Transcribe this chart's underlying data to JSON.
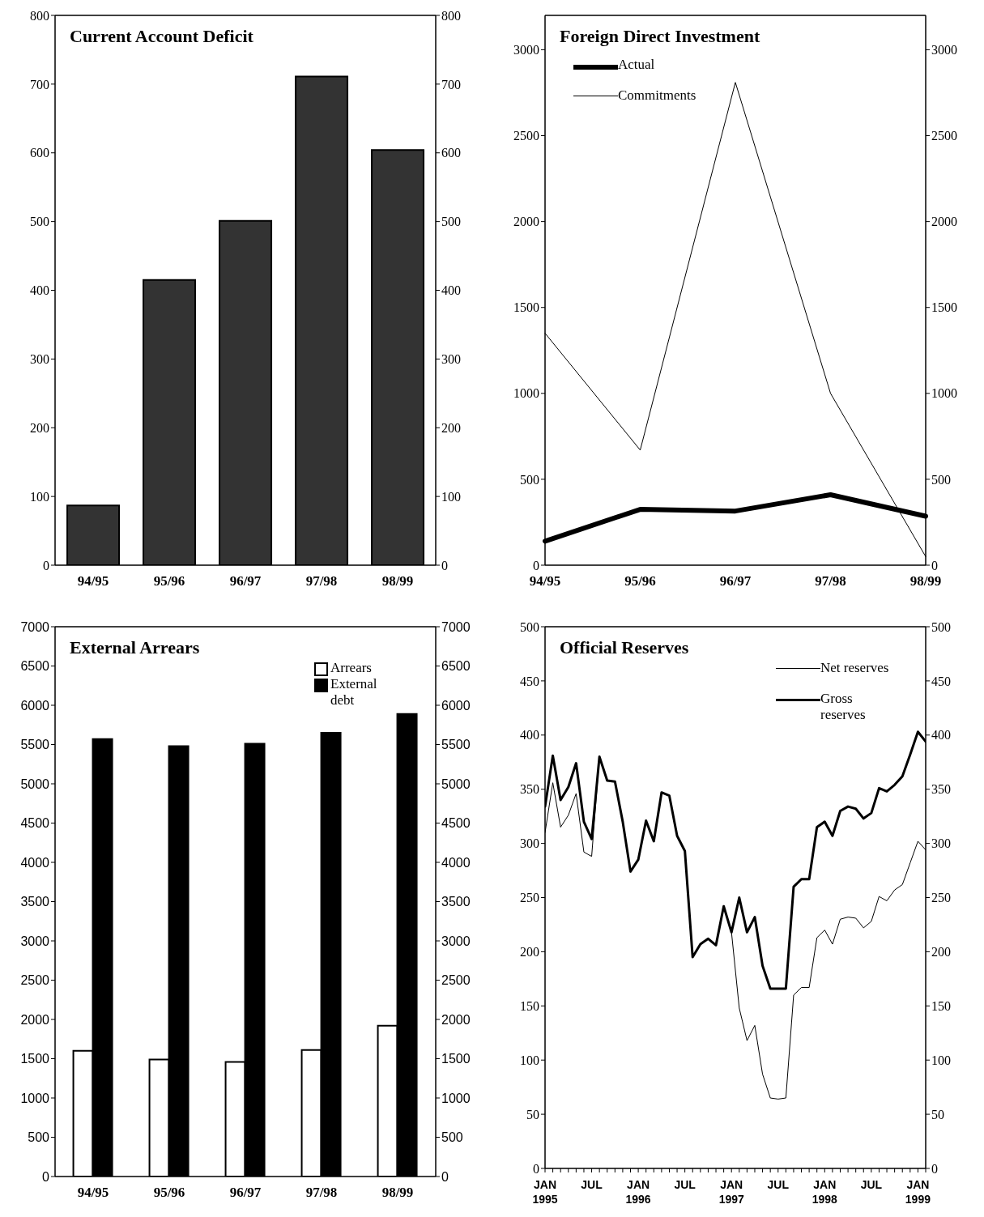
{
  "chart_data": [
    {
      "type": "bar",
      "title": "Current Account Deficit",
      "categories": [
        "94/95",
        "95/96",
        "96/97",
        "97/98",
        "98/99"
      ],
      "values": [
        87,
        415,
        501,
        711,
        604
      ],
      "color": "#333333",
      "ylim": [
        0,
        800
      ],
      "yticks": [
        0,
        100,
        200,
        300,
        400,
        500,
        600,
        700,
        800
      ],
      "y2lim": [
        0,
        800
      ],
      "y2ticks": [
        0,
        100,
        200,
        300,
        400,
        500,
        600,
        700,
        800
      ]
    },
    {
      "type": "line",
      "title": "Foreign Direct Investment",
      "categories": [
        "94/95",
        "95/96",
        "96/97",
        "97/98",
        "98/99"
      ],
      "series": [
        {
          "name": "Actual",
          "color": "#000000",
          "values": [
            140,
            325,
            315,
            410,
            285
          ]
        },
        {
          "name": "Commitments",
          "color": "#000000",
          "values": [
            1350,
            670,
            2810,
            1000,
            50
          ]
        }
      ],
      "ylim": [
        0,
        3200
      ],
      "yticks": [
        0,
        500,
        1000,
        1500,
        2000,
        2500,
        3000
      ],
      "y2lim": [
        0,
        3200
      ],
      "y2ticks": [
        0,
        500,
        1000,
        1500,
        2000,
        2500,
        3000
      ],
      "legend": "top left"
    },
    {
      "type": "bar",
      "title": "External Arrears",
      "categories": [
        "94/95",
        "95/96",
        "96/97",
        "97/98",
        "98/99"
      ],
      "series": [
        {
          "name": "Arrears",
          "color": "#ffffff",
          "values": [
            1600,
            1490,
            1460,
            1610,
            1920
          ]
        },
        {
          "name": "External debt",
          "color": "#000000",
          "values": [
            5570,
            5480,
            5510,
            5650,
            5890
          ]
        }
      ],
      "ylim": [
        0,
        7000
      ],
      "yticks": [
        0,
        500,
        1000,
        1500,
        2000,
        2500,
        3000,
        3500,
        4000,
        4500,
        5000,
        5500,
        6000,
        6500,
        7000
      ],
      "y2lim": [
        0,
        7000
      ],
      "y2ticks": [
        0,
        500,
        1000,
        1500,
        2000,
        2500,
        3000,
        3500,
        4000,
        4500,
        5000,
        5500,
        6000,
        6500,
        7000
      ],
      "legend": "top right"
    },
    {
      "type": "line",
      "title": "Official Reserves",
      "x": [
        "1995-01",
        "1995-02",
        "1995-03",
        "1995-04",
        "1995-05",
        "1995-06",
        "1995-07",
        "1995-08",
        "1995-09",
        "1995-10",
        "1995-11",
        "1995-12",
        "1996-01",
        "1996-02",
        "1996-03",
        "1996-04",
        "1996-05",
        "1996-06",
        "1996-07",
        "1996-08",
        "1996-09",
        "1996-10",
        "1996-11",
        "1996-12",
        "1997-01",
        "1997-02",
        "1997-03",
        "1997-04",
        "1997-05",
        "1997-06",
        "1997-07",
        "1997-08",
        "1997-09",
        "1997-10",
        "1997-11",
        "1997-12",
        "1998-01",
        "1998-02",
        "1998-03",
        "1998-04",
        "1998-05",
        "1998-06",
        "1998-07",
        "1998-08",
        "1998-09",
        "1998-10",
        "1998-11",
        "1998-12",
        "1999-01",
        "1999-02"
      ],
      "series": [
        {
          "name": "Net reserves",
          "color": "#000000",
          "values": [
            310,
            356,
            315,
            326,
            346,
            292,
            288,
            380,
            358,
            357,
            320,
            274,
            285,
            321,
            302,
            347,
            344,
            307,
            293,
            195,
            207,
            212,
            206,
            242,
            218,
            148,
            118,
            132,
            87,
            65,
            64,
            65,
            160,
            167,
            167,
            213,
            220,
            207,
            230,
            232,
            231,
            222,
            228,
            251,
            247,
            257,
            262,
            282,
            302,
            294
          ]
        },
        {
          "name": "Gross reserves",
          "color": "#000000",
          "values": [
            334,
            381,
            340,
            352,
            374,
            320,
            304,
            380,
            358,
            357,
            320,
            274,
            285,
            321,
            302,
            347,
            344,
            307,
            293,
            195,
            207,
            212,
            206,
            242,
            218,
            250,
            218,
            232,
            187,
            166,
            166,
            166,
            260,
            267,
            267,
            315,
            320,
            307,
            330,
            334,
            332,
            323,
            328,
            351,
            348,
            354,
            362,
            382,
            403,
            394
          ]
        }
      ],
      "xlim": [
        "1995-01",
        "1999-02"
      ],
      "xticks": [
        {
          "value": "1995-01",
          "label": "JAN 1995"
        },
        {
          "value": "1995-02",
          "label": null
        },
        {
          "value": "1995-03",
          "label": null
        },
        {
          "value": "1995-04",
          "label": null
        },
        {
          "value": "1995-05",
          "label": null
        },
        {
          "value": "1995-06",
          "label": null
        },
        {
          "value": "1995-07",
          "label": "JUL"
        },
        {
          "value": "1995-08",
          "label": null
        },
        {
          "value": "1995-09",
          "label": null
        },
        {
          "value": "1995-10",
          "label": null
        },
        {
          "value": "1995-11",
          "label": null
        },
        {
          "value": "1995-12",
          "label": null
        },
        {
          "value": "1996-01",
          "label": "JAN 1996"
        },
        {
          "value": "1996-02",
          "label": null
        },
        {
          "value": "1996-03",
          "label": null
        },
        {
          "value": "1996-04",
          "label": null
        },
        {
          "value": "1996-05",
          "label": null
        },
        {
          "value": "1996-06",
          "label": null
        },
        {
          "value": "1996-07",
          "label": "JUL"
        },
        {
          "value": "1996-08",
          "label": null
        },
        {
          "value": "1996-09",
          "label": null
        },
        {
          "value": "1996-10",
          "label": null
        },
        {
          "value": "1996-11",
          "label": null
        },
        {
          "value": "1996-12",
          "label": null
        },
        {
          "value": "1997-01",
          "label": "JAN 1997"
        },
        {
          "value": "1997-02",
          "label": null
        },
        {
          "value": "1997-03",
          "label": null
        },
        {
          "value": "1997-04",
          "label": null
        },
        {
          "value": "1997-05",
          "label": null
        },
        {
          "value": "1997-06",
          "label": null
        },
        {
          "value": "1997-07",
          "label": "JUL"
        },
        {
          "value": "1997-08",
          "label": null
        },
        {
          "value": "1997-09",
          "label": null
        },
        {
          "value": "1997-10",
          "label": null
        },
        {
          "value": "1997-11",
          "label": null
        },
        {
          "value": "1997-12",
          "label": null
        },
        {
          "value": "1998-01",
          "label": "JAN 1998"
        },
        {
          "value": "1998-02",
          "label": null
        },
        {
          "value": "1998-03",
          "label": null
        },
        {
          "value": "1998-04",
          "label": null
        },
        {
          "value": "1998-05",
          "label": null
        },
        {
          "value": "1998-06",
          "label": null
        },
        {
          "value": "1998-07",
          "label": "JUL"
        },
        {
          "value": "1998-08",
          "label": null
        },
        {
          "value": "1998-09",
          "label": null
        },
        {
          "value": "1998-10",
          "label": null
        },
        {
          "value": "1998-11",
          "label": null
        },
        {
          "value": "1998-12",
          "label": null
        },
        {
          "value": "1999-01",
          "label": "JAN 1999"
        },
        {
          "value": "1999-02",
          "label": null
        }
      ],
      "ylim": [
        0,
        500
      ],
      "yticks": [
        0,
        50,
        100,
        150,
        200,
        250,
        300,
        350,
        400,
        450,
        500
      ],
      "y2lim": [
        0,
        500
      ],
      "y2ticks": [
        0,
        50,
        100,
        150,
        200,
        250,
        300,
        350,
        400,
        450,
        500
      ],
      "legend": "top right"
    }
  ]
}
